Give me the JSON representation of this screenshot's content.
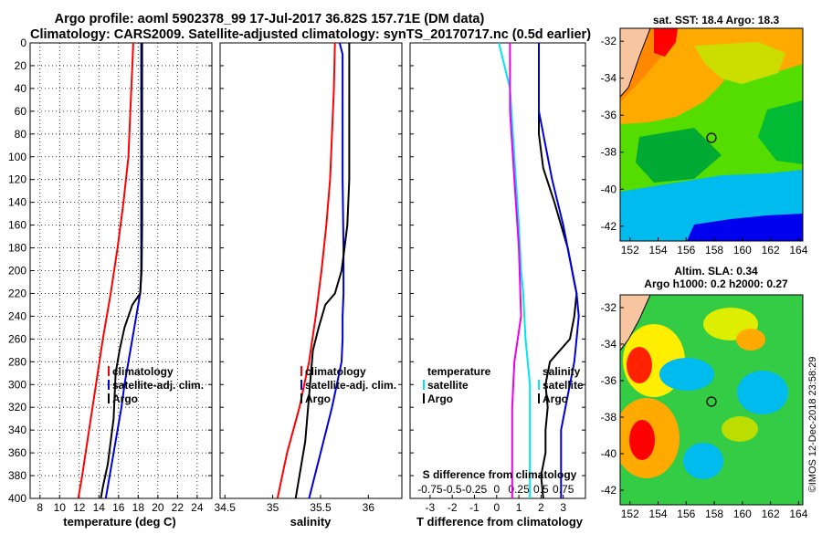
{
  "header": {
    "title_line1": "Argo profile: aoml 5902378_99 17-Jul-2017 36.82S 157.71E (DM data)",
    "title_line2": "Climatology: CARS2009. Satellite-adjusted climatology: synTS_20170717.nc (0.5d earlier)"
  },
  "colors": {
    "climatology": "#ff0000",
    "satellite": "#0000dd",
    "argo": "#000000",
    "t_diff_satellite": "#00e5ee",
    "t_diff_climatology": "#ee00ee"
  },
  "chart_data": [
    {
      "type": "line",
      "name": "temperature",
      "xlabel": "temperature (deg C)",
      "ylabel": "depth",
      "xlim": [
        7,
        25.5
      ],
      "ylim": [
        400,
        0
      ],
      "xticks": [
        8,
        10,
        12,
        14,
        16,
        18,
        20,
        22,
        24
      ],
      "yticks": [
        0,
        20,
        40,
        60,
        80,
        100,
        120,
        140,
        160,
        180,
        200,
        220,
        240,
        260,
        280,
        300,
        320,
        340,
        360,
        380,
        400
      ],
      "grid": true,
      "legend": [
        "climatology",
        "satellite-adj. clim.",
        "Argo"
      ],
      "legend_position": "lower-middle",
      "series": [
        {
          "name": "climatology",
          "color": "#ff0000",
          "depth": [
            0,
            20,
            60,
            100,
            140,
            180,
            220,
            260,
            300,
            340,
            380,
            400
          ],
          "values": [
            17.5,
            17.4,
            17.2,
            17.0,
            16.5,
            15.9,
            15.2,
            14.4,
            13.7,
            13.0,
            12.3,
            11.9
          ]
        },
        {
          "name": "satellite-adj. clim.",
          "color": "#0000dd",
          "depth": [
            0,
            40,
            80,
            120,
            160,
            200,
            220,
            240,
            260,
            280,
            300,
            320,
            340,
            360,
            380,
            400
          ],
          "values": [
            18.3,
            18.3,
            18.3,
            18.3,
            18.3,
            18.3,
            18.2,
            17.8,
            17.4,
            17.0,
            16.6,
            16.3,
            15.9,
            15.5,
            15.1,
            14.7
          ]
        },
        {
          "name": "Argo",
          "color": "#000000",
          "depth": [
            0,
            40,
            80,
            120,
            160,
            200,
            220,
            230,
            250,
            270,
            290,
            310,
            330,
            350,
            370,
            390,
            400
          ],
          "values": [
            18.4,
            18.4,
            18.4,
            18.4,
            18.4,
            18.35,
            18.2,
            17.4,
            16.6,
            16.1,
            15.7,
            15.6,
            15.5,
            15.2,
            14.9,
            14.4,
            14.2
          ]
        }
      ]
    },
    {
      "type": "line",
      "name": "salinity",
      "xlabel": "salinity",
      "ylabel": "depth",
      "xlim": [
        34.45,
        36.35
      ],
      "ylim": [
        400,
        0
      ],
      "xticks": [
        34.5,
        35,
        35.5,
        36
      ],
      "xtick_labels": [
        "34.5",
        "35",
        "35.5",
        "36"
      ],
      "grid": false,
      "legend": [
        "climatology",
        "satellite-adj. clim.",
        "Argo"
      ],
      "legend_position": "lower-middle",
      "series": [
        {
          "name": "climatology",
          "color": "#ff0000",
          "depth": [
            0,
            40,
            80,
            120,
            160,
            200,
            240,
            280,
            320,
            360,
            400
          ],
          "values": [
            35.65,
            35.64,
            35.62,
            35.6,
            35.56,
            35.51,
            35.45,
            35.38,
            35.28,
            35.15,
            35.05
          ]
        },
        {
          "name": "satellite-adj. clim.",
          "color": "#0000dd",
          "depth": [
            0,
            10,
            60,
            120,
            180,
            220,
            240,
            260,
            280,
            300,
            320,
            340,
            360,
            380,
            400
          ],
          "values": [
            35.7,
            35.73,
            35.73,
            35.73,
            35.74,
            35.74,
            35.73,
            35.73,
            35.72,
            35.67,
            35.62,
            35.56,
            35.5,
            35.44,
            35.38
          ]
        },
        {
          "name": "Argo",
          "color": "#000000",
          "depth": [
            0,
            60,
            120,
            160,
            180,
            200,
            220,
            230,
            250,
            270,
            290,
            310,
            330,
            350,
            370,
            390,
            400
          ],
          "values": [
            35.8,
            35.8,
            35.8,
            35.78,
            35.75,
            35.72,
            35.65,
            35.55,
            35.48,
            35.42,
            35.4,
            35.38,
            35.36,
            35.34,
            35.3,
            35.26,
            35.24
          ]
        }
      ]
    },
    {
      "type": "line",
      "name": "differences",
      "xlabel": "T difference from climatology",
      "x2label": "S difference from climatology",
      "ylabel": "depth",
      "xlim": [
        -3.9,
        4.0
      ],
      "ylim": [
        400,
        0
      ],
      "xticks": [
        -3,
        -2,
        -1,
        0,
        1,
        2,
        3
      ],
      "xtick_labels": [
        "-3",
        "-2",
        "-1",
        "0",
        "1",
        "2",
        "3"
      ],
      "s_axis_labels": [
        "-0.75",
        "-0.5",
        "-0.25",
        "0",
        "0.25",
        "0.5",
        "0.75"
      ],
      "grid": false,
      "legend": [
        "temperature",
        "satellite",
        "Argo",
        "salinity",
        "satellite",
        "Argo"
      ],
      "legend_position": "lower-middle",
      "series": [
        {
          "name": "T satellite",
          "color": "#00e5ee",
          "depth": [
            0,
            40,
            100,
            160,
            200,
            220,
            260,
            300,
            340,
            400
          ],
          "values": [
            0.1,
            0.6,
            0.8,
            1.0,
            1.1,
            1.2,
            1.3,
            1.5,
            1.5,
            1.5
          ]
        },
        {
          "name": "T Argo",
          "color": "#000000",
          "depth": [
            0,
            40,
            80,
            110,
            140,
            180,
            210,
            220,
            240,
            260,
            280,
            300,
            320,
            340,
            360,
            380,
            400
          ],
          "values": [
            1.9,
            1.9,
            1.9,
            2.1,
            2.6,
            3.2,
            3.5,
            3.6,
            3.5,
            3.3,
            2.4,
            2.2,
            2.3,
            2.2,
            2.2,
            2.0,
            2.1
          ]
        },
        {
          "name": "S satellite",
          "color": "#0000dd",
          "depth": [
            0,
            60,
            120,
            160,
            200,
            220,
            240,
            260,
            280,
            300,
            320,
            340,
            360,
            380,
            400
          ],
          "values": [
            1.9,
            1.9,
            2.5,
            3.0,
            3.4,
            3.6,
            3.7,
            3.6,
            3.5,
            3.3,
            3.1,
            2.9,
            2.9,
            2.9,
            2.9
          ]
        },
        {
          "name": "T climatology",
          "color": "#ee00ee",
          "depth": [
            0,
            60,
            120,
            180,
            240,
            280,
            320,
            360,
            400
          ],
          "values": [
            0.6,
            0.6,
            0.8,
            1.0,
            1.1,
            0.8,
            0.7,
            0.7,
            0.7
          ]
        }
      ]
    }
  ],
  "legends": {
    "temperature": {
      "climatology": "climatology",
      "satellite": "satellite-adj. clim.",
      "argo": "Argo"
    },
    "salinity": {
      "climatology": "climatology",
      "satellite": "satellite-adj. clim.",
      "argo": "Argo"
    },
    "diff_temperature": {
      "heading": "temperature",
      "satellite": "satellite",
      "argo": "Argo"
    },
    "diff_salinity": {
      "heading": "salinity",
      "satellite": "satellite",
      "argo": "Argo"
    }
  },
  "maps": {
    "sst": {
      "title": "sat. SST: 18.4 Argo: 18.3",
      "xticks": [
        "152",
        "154",
        "156",
        "158",
        "160",
        "162",
        "164"
      ],
      "yticks": [
        "-32",
        "-34",
        "-36",
        "-38",
        "-40",
        "-42"
      ]
    },
    "sla": {
      "title_line1": "Altim. SLA: 0.34",
      "title_line2": "Argo h1000: 0.2 h2000: 0.27",
      "xticks": [
        "152",
        "154",
        "156",
        "158",
        "160",
        "162",
        "164"
      ],
      "yticks": [
        "-32",
        "-34",
        "-36",
        "-38",
        "-40",
        "-42"
      ]
    }
  },
  "footer": {
    "stamp": "©IMOS 12-Dec-2018 23:58:29"
  }
}
